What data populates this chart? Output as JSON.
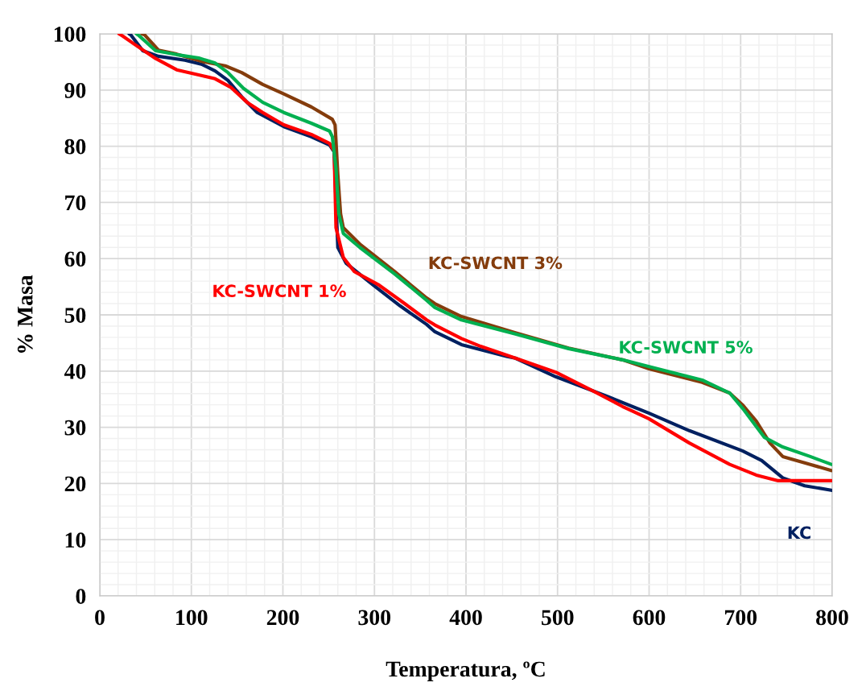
{
  "chart_data": {
    "type": "line",
    "xlabel": "Temperatura, ºC",
    "ylabel": "% Masa",
    "xlim": [
      0,
      800
    ],
    "xticks": [
      0,
      100,
      200,
      300,
      400,
      500,
      600,
      700,
      800
    ],
    "ylim": [
      0,
      100
    ],
    "yticks": [
      0,
      10,
      20,
      30,
      40,
      50,
      60,
      70,
      80,
      90,
      100
    ],
    "grid": true,
    "legend": false,
    "marker": "none",
    "line_style": "solid",
    "series": [
      {
        "name": "KC",
        "color": "#002060",
        "x": [
          32,
          34,
          47,
          64,
          93,
          111,
          126,
          140,
          155,
          172,
          201,
          231,
          251,
          256,
          258,
          260,
          269,
          298,
          328,
          357,
          366,
          395,
          445,
          454,
          498,
          556,
          600,
          644,
          702,
          723,
          746,
          770,
          799
        ],
        "values": [
          100,
          99.8,
          97,
          96,
          95.3,
          94.6,
          93.4,
          91.7,
          88.8,
          86,
          83.5,
          81.7,
          80.2,
          79,
          70,
          62,
          59.2,
          55.4,
          51.6,
          48.3,
          47,
          44.7,
          42.6,
          42.3,
          39,
          35.4,
          32.5,
          29.4,
          25.8,
          24.1,
          21,
          19.6,
          18.8
        ]
      },
      {
        "name": "KC-SWCNT 1%",
        "color": "#ff0000",
        "x": [
          21,
          25,
          40,
          61,
          84,
          108,
          126,
          143,
          161,
          178,
          201,
          231,
          251,
          256,
          258,
          266,
          278,
          304,
          333,
          357,
          366,
          395,
          416,
          454,
          498,
          542,
          571,
          600,
          644,
          688,
          717,
          741,
          799
        ],
        "values": [
          100,
          99.6,
          97.9,
          95.6,
          93.6,
          92.7,
          92,
          90.5,
          87.8,
          86,
          83.8,
          82.1,
          80.5,
          79.1,
          65.5,
          60.2,
          57.7,
          55.4,
          52,
          49.1,
          48.2,
          45.8,
          44.4,
          42.3,
          39.8,
          36.2,
          33.7,
          31.5,
          27.2,
          23.4,
          21.5,
          20.5,
          20.5
        ]
      },
      {
        "name": "KC-SWCNT 3%",
        "color": "#843c0c",
        "x": [
          46,
          49,
          64,
          84,
          114,
          137,
          155,
          178,
          201,
          231,
          254,
          257,
          260,
          263,
          266,
          284,
          322,
          357,
          366,
          395,
          454,
          512,
          571,
          600,
          658,
          688,
          702,
          717,
          732,
          746,
          776,
          799
        ],
        "values": [
          100,
          99.8,
          97.1,
          96.4,
          95,
          94.3,
          93.1,
          91,
          89.3,
          87,
          84.8,
          83.8,
          75,
          68,
          65.5,
          62.6,
          57.7,
          53,
          52,
          49.7,
          46.8,
          44.1,
          42,
          40.4,
          38,
          36.1,
          34,
          31.1,
          27.2,
          24.8,
          23.4,
          22.3
        ]
      },
      {
        "name": "KC-SWCNT 5%",
        "color": "#00b050",
        "x": [
          40,
          42,
          61,
          84,
          108,
          126,
          140,
          157,
          178,
          201,
          231,
          251,
          254,
          258,
          261,
          266,
          284,
          322,
          357,
          366,
          395,
          454,
          512,
          571,
          600,
          658,
          688,
          702,
          726,
          746,
          776,
          799
        ],
        "values": [
          100,
          99.8,
          97,
          96.3,
          95.7,
          94.8,
          93.1,
          90.3,
          87.8,
          86,
          84.1,
          82.7,
          81.7,
          76,
          68,
          64.5,
          62,
          57.3,
          52.6,
          51.3,
          49.1,
          46.6,
          44,
          42,
          40.8,
          38.4,
          36.1,
          33.4,
          28.2,
          26.5,
          24.8,
          23.4
        ]
      }
    ]
  }
}
